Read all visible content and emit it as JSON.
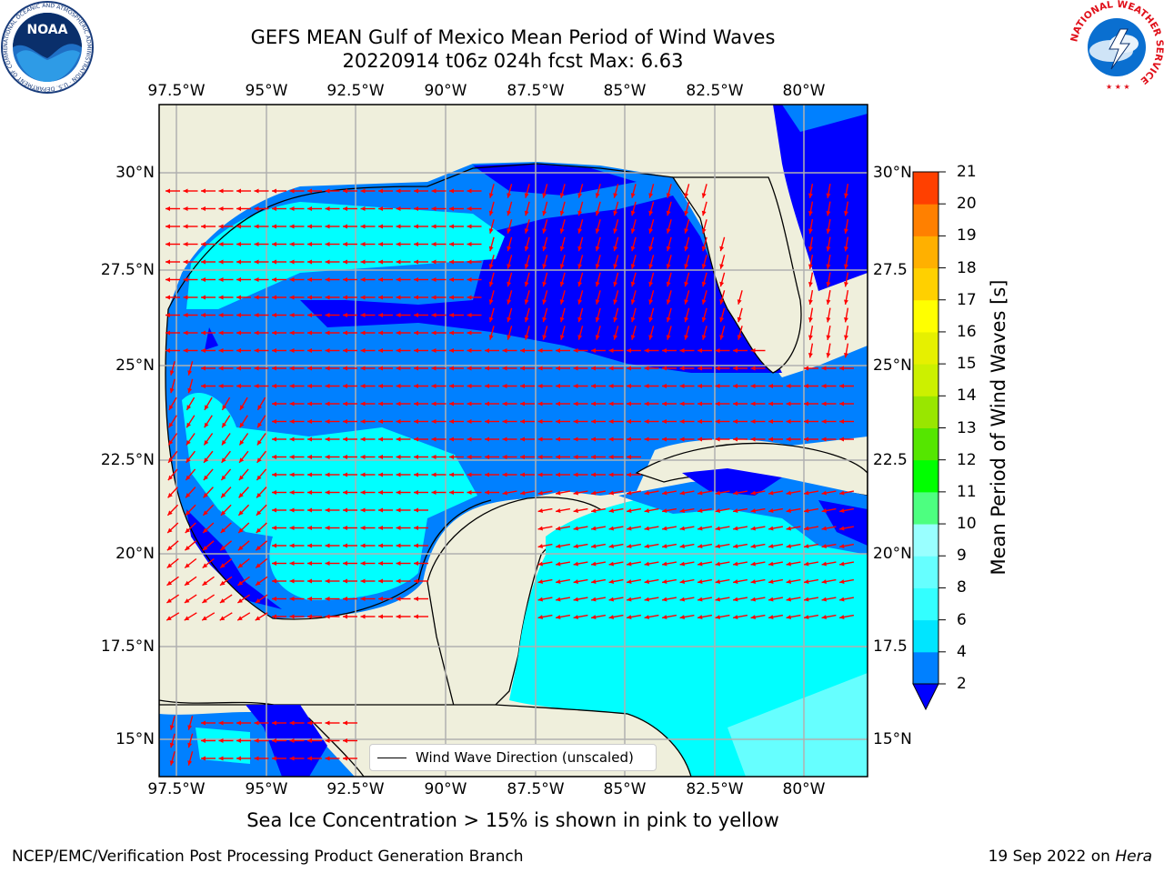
{
  "title": {
    "line1": "GEFS MEAN Gulf of Mexico Mean Period of Wind Waves",
    "line2": "20220914 t06z 024h fcst   Max: 6.63"
  },
  "axes": {
    "lon_labels": [
      "97.5°W",
      "95°W",
      "92.5°W",
      "90°W",
      "87.5°W",
      "85°W",
      "82.5°W",
      "80°W"
    ],
    "lat_labels_left": [
      "30°N",
      "27.5°N",
      "25°N",
      "22.5°N",
      "20°N",
      "17.5°N",
      "15°N"
    ],
    "lat_labels_right": [
      "30°N",
      "27.5",
      "25°N",
      "22.5",
      "20°N",
      "17.5",
      "15°N"
    ]
  },
  "colorbar": {
    "label": "Mean Period of Wind Waves [s]",
    "ticks": [
      "2",
      "4",
      "6",
      "8",
      "9",
      "10",
      "11",
      "12",
      "13",
      "14",
      "15",
      "16",
      "17",
      "18",
      "19",
      "20",
      "21"
    ],
    "colors": [
      "#0080ff",
      "#00e5ff",
      "#33ffff",
      "#66ffff",
      "#99ffff",
      "#4dff80",
      "#00ff00",
      "#55e600",
      "#99e600",
      "#ccf000",
      "#e6f000",
      "#ffff00",
      "#ffd000",
      "#ffb000",
      "#ff8000",
      "#ff4000",
      "#ff0000"
    ],
    "under_color": "#0000ff"
  },
  "legend": {
    "text": "Wind Wave Direction (unscaled)"
  },
  "subtitle": "Sea Ice Concentration > 15% is shown in pink to yellow",
  "footer": {
    "left": "NCEP/EMC/Verification Post Processing Product Generation Branch",
    "right_date": "19 Sep 2022 on ",
    "right_host": "Hera"
  },
  "logos": {
    "noaa": {
      "text": "NOAA",
      "ring_text": "NATIONAL OCEANIC AND ATMOSPHERIC ADMINISTRATION · U.S. DEPARTMENT OF COMMERCE"
    },
    "nws": {
      "ring_text": "NATIONAL WEATHER SERVICE"
    }
  },
  "map_colors": {
    "land": "#efefdc",
    "ocean_2_4": "#0080ff",
    "ocean_4_6": "#00ffff",
    "ocean_under_2": "#0000ff",
    "ocean_6_8": "#66ffff",
    "arrows": "#ff0000",
    "grid": "#b0b0b0"
  }
}
